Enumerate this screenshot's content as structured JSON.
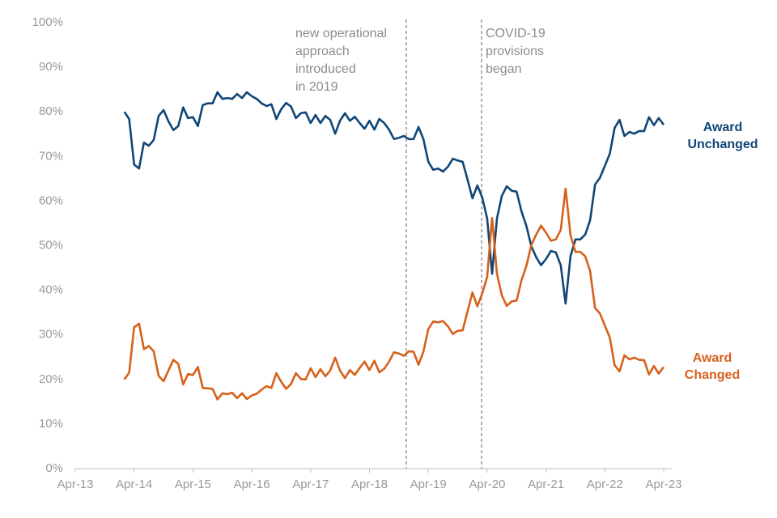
{
  "chart_data": {
    "type": "line",
    "categories": [
      "Apr-13",
      null,
      null,
      null,
      null,
      null,
      null,
      null,
      null,
      null,
      null,
      null,
      "Apr-14",
      null,
      null,
      null,
      null,
      null,
      null,
      null,
      null,
      null,
      null,
      null,
      "Apr-15",
      null,
      null,
      null,
      null,
      null,
      null,
      null,
      null,
      null,
      null,
      null,
      "Apr-16",
      null,
      null,
      null,
      null,
      null,
      null,
      null,
      null,
      null,
      null,
      null,
      "Apr-17",
      null,
      null,
      null,
      null,
      null,
      null,
      null,
      null,
      null,
      null,
      null,
      "Apr-18",
      null,
      null,
      null,
      null,
      null,
      null,
      null,
      null,
      null,
      null,
      null,
      "Apr-19",
      null,
      null,
      null,
      null,
      null,
      null,
      null,
      null,
      null,
      null,
      null,
      "Apr-20",
      null,
      null,
      null,
      null,
      null,
      null,
      null,
      null,
      null,
      null,
      null,
      "Apr-21",
      null,
      null,
      null,
      null,
      null,
      null,
      null,
      null,
      null,
      null,
      null,
      "Apr-22",
      null,
      null,
      null,
      null,
      null,
      null,
      null,
      null,
      null,
      null,
      null,
      "Apr-23"
    ],
    "series": [
      {
        "name": "Award Unchanged",
        "color": "#0f4677",
        "values": [
          null,
          null,
          null,
          null,
          null,
          null,
          null,
          null,
          null,
          null,
          80,
          78.4,
          68.2,
          67.3,
          73.1,
          72.4,
          73.7,
          79.1,
          80.4,
          77.9,
          75.9,
          76.8,
          81,
          78.6,
          78.8,
          76.8,
          81.5,
          81.9,
          81.9,
          84.4,
          82.9,
          83.1,
          82.9,
          84,
          83.1,
          84.4,
          83.5,
          82.9,
          81.9,
          81.3,
          81.7,
          78.4,
          80.6,
          82,
          81.2,
          78.6,
          79.7,
          79.9,
          77.5,
          79.3,
          77.5,
          79.1,
          78.2,
          75.1,
          78,
          79.7,
          78,
          78.9,
          77.5,
          76.2,
          78,
          76,
          78.4,
          77.5,
          76,
          73.9,
          74.2,
          74.6,
          73.9,
          73.9,
          76.6,
          73.9,
          68.8,
          67,
          67.3,
          66.6,
          67.7,
          69.5,
          69.1,
          68.8,
          64.8,
          60.6,
          63.5,
          60.8,
          56.1,
          43.7,
          56.1,
          61.2,
          63.3,
          62.3,
          62.1,
          57.7,
          54.4,
          49.9,
          47.4,
          45.6,
          47,
          48.8,
          48.5,
          45.6,
          37,
          47.7,
          51.4,
          51.4,
          52.5,
          55.7,
          63.7,
          65.2,
          67.9,
          70.6,
          76.4,
          78.2,
          74.6,
          75.5,
          75.1,
          75.7,
          75.7,
          78.8,
          77,
          78.6,
          77.1
        ]
      },
      {
        "name": "Award Changed",
        "color": "#d6611b",
        "values": [
          null,
          null,
          null,
          null,
          null,
          null,
          null,
          null,
          null,
          null,
          20,
          21.5,
          31.7,
          32.5,
          26.8,
          27.5,
          26.3,
          20.8,
          19.6,
          22,
          24.4,
          23.5,
          18.9,
          21.2,
          21,
          22.8,
          18.1,
          18,
          17.9,
          15.5,
          16.9,
          16.7,
          17,
          15.8,
          16.9,
          15.6,
          16.4,
          16.8,
          17.7,
          18.5,
          18.1,
          21.4,
          19.5,
          17.9,
          19,
          21.4,
          20.1,
          20,
          22.5,
          20.5,
          22.3,
          20.7,
          22,
          24.9,
          22,
          20.3,
          22.1,
          21,
          22.6,
          24,
          22.1,
          24.2,
          21.6,
          22.4,
          24,
          26.1,
          25.8,
          25.3,
          26.3,
          26.2,
          23.3,
          26.2,
          31.3,
          33,
          32.8,
          33.1,
          31.9,
          30.2,
          30.9,
          31,
          35.3,
          39.5,
          36.4,
          39.3,
          43,
          56.2,
          43.7,
          38.8,
          36.5,
          37.5,
          37.7,
          42.2,
          45.5,
          50.1,
          52.5,
          54.5,
          52.9,
          51.1,
          51.4,
          53.5,
          62.8,
          52.3,
          48.6,
          48.6,
          47.6,
          44.3,
          36,
          34.8,
          32.1,
          29.4,
          23.2,
          21.8,
          25.4,
          24.5,
          24.9,
          24.4,
          24.3,
          21.1,
          23,
          21.3,
          22.8
        ]
      }
    ],
    "ylim": [
      0,
      100
    ],
    "yticks": [
      {
        "value": 0,
        "label": "0%"
      },
      {
        "value": 10,
        "label": "10%"
      },
      {
        "value": 20,
        "label": "20%"
      },
      {
        "value": 30,
        "label": "30%"
      },
      {
        "value": 40,
        "label": "40%"
      },
      {
        "value": 50,
        "label": "50%"
      },
      {
        "value": 60,
        "label": "60%"
      },
      {
        "value": 70,
        "label": "70%"
      },
      {
        "value": 80,
        "label": "80%"
      },
      {
        "value": 90,
        "label": "90%"
      },
      {
        "value": 100,
        "label": "100%"
      }
    ],
    "grid": false,
    "annotations": [
      {
        "lines": [
          "new operational",
          "approach",
          "introduced",
          "in 2019"
        ]
      },
      {
        "lines": [
          "COVID-19",
          "provisions",
          "began"
        ]
      }
    ]
  }
}
